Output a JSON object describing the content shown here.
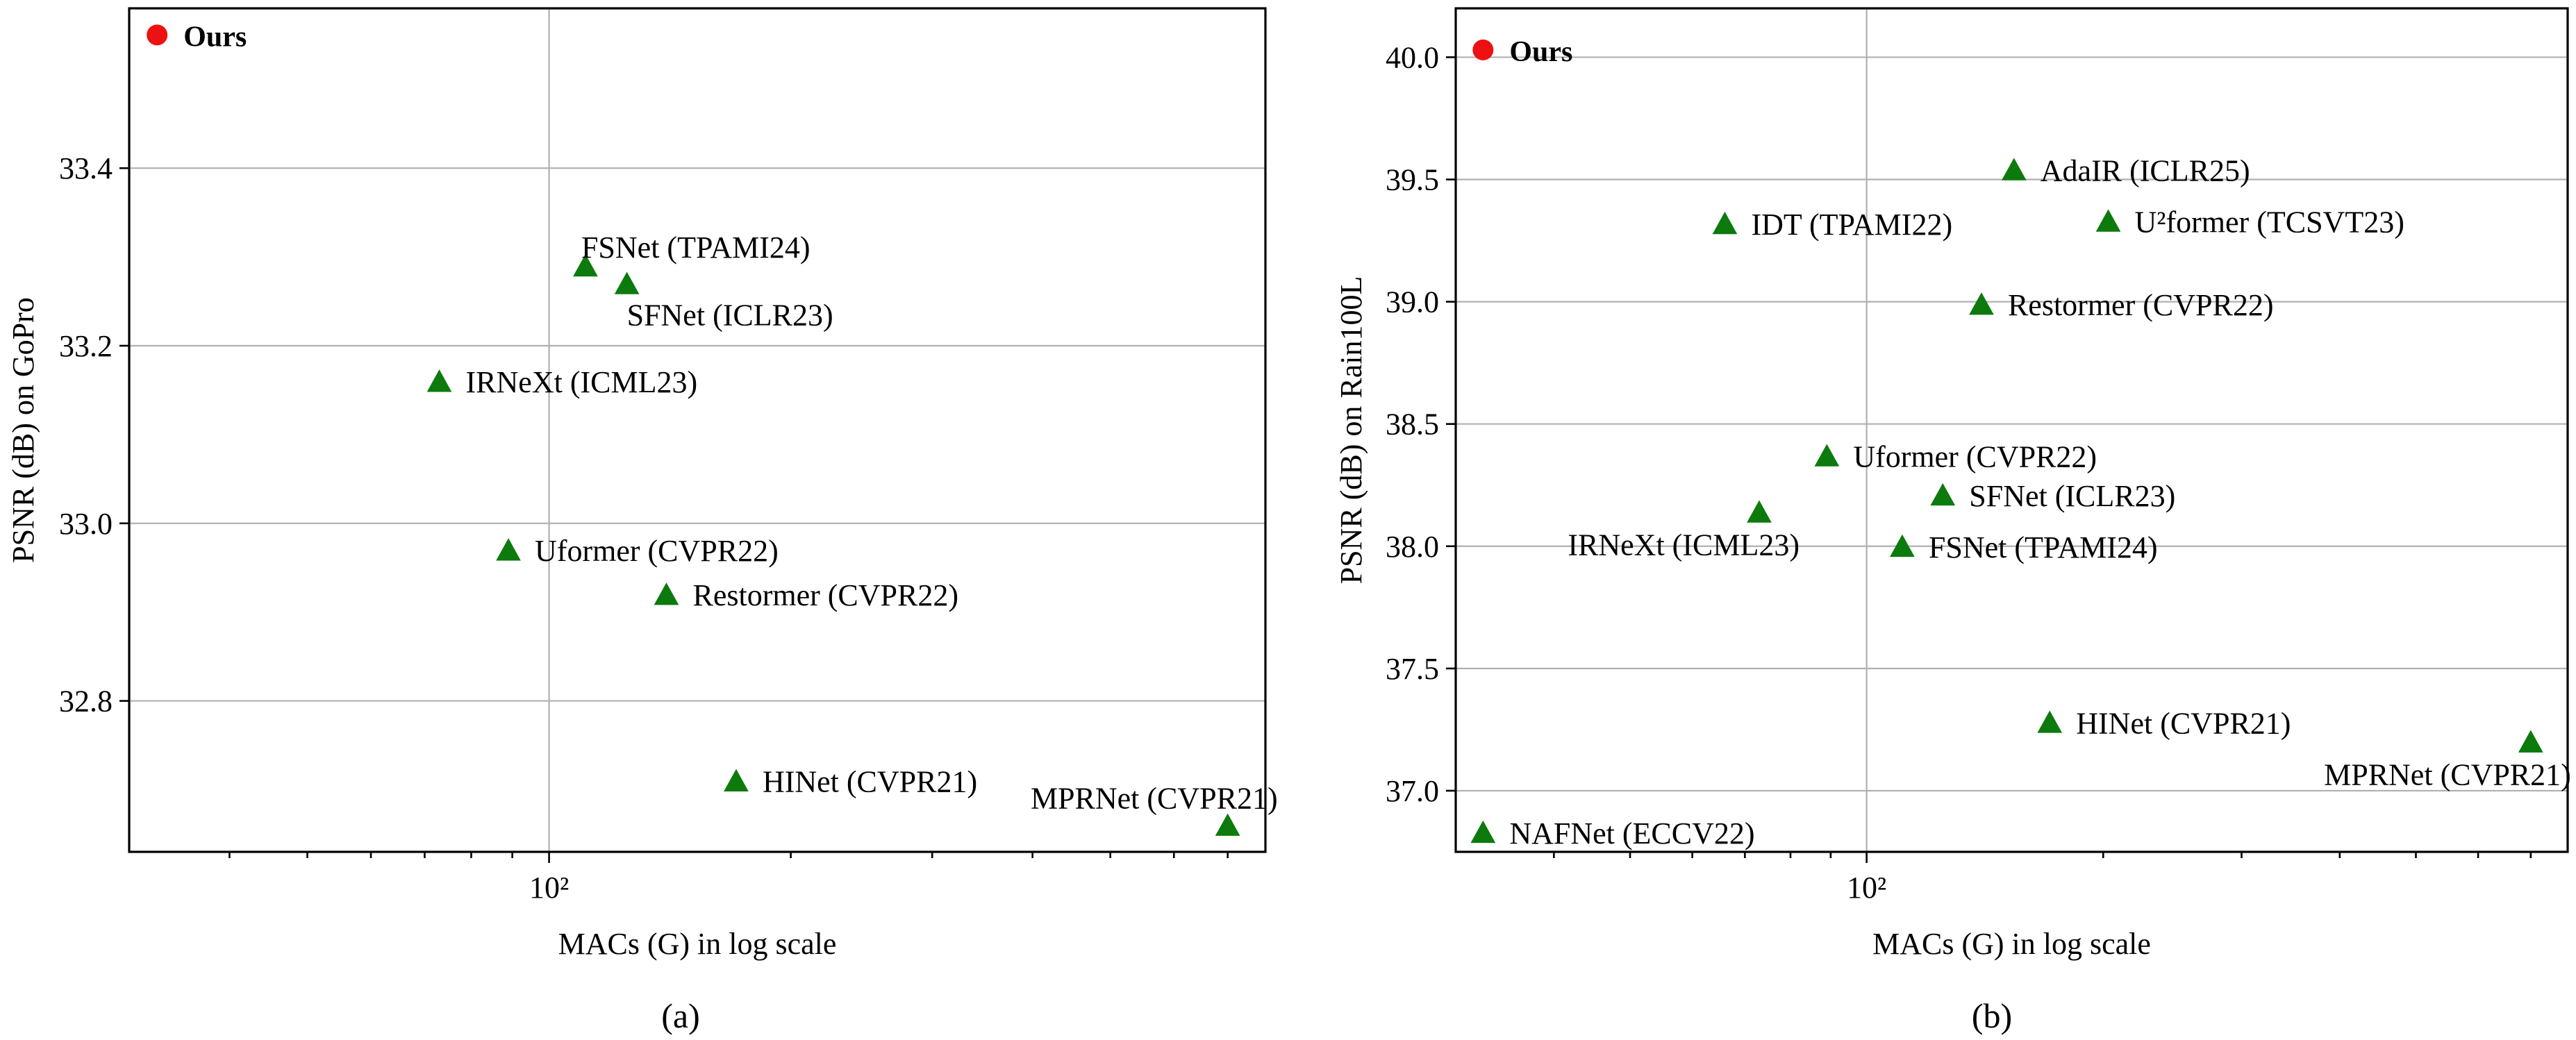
{
  "figure": {
    "colors": {
      "ours": "#ee1111",
      "others": "#0c7a0c",
      "grid": "#b0b0b0"
    }
  },
  "chart_data": [
    {
      "type": "scatter",
      "caption": "(a)",
      "xlabel": "MACs (G) in log scale",
      "ylabel": "PSNR (dB) on GoPro",
      "xscale": "log",
      "xlim": [
        30,
        780
      ],
      "ylim": [
        32.63,
        33.58
      ],
      "xticks": [
        100
      ],
      "xtick_labels": [
        "10²"
      ],
      "yticks": [
        32.8,
        33.0,
        33.2,
        33.4
      ],
      "ytick_labels": [
        "32.8",
        "33.0",
        "33.2",
        "33.4"
      ],
      "grid": true,
      "points": [
        {
          "name": "Ours",
          "x": 32.5,
          "y": 33.55,
          "marker": "circle",
          "label_pos": "right",
          "bold": true
        },
        {
          "name": "FSNet (TPAMI24)",
          "x": 111,
          "y": 33.29,
          "marker": "triangle",
          "label_pos": "top"
        },
        {
          "name": "SFNet (ICLR23)",
          "x": 125,
          "y": 33.27,
          "marker": "triangle",
          "label_pos": "below-right"
        },
        {
          "name": "IRNeXt (ICML23)",
          "x": 73,
          "y": 33.16,
          "marker": "triangle",
          "label_pos": "right"
        },
        {
          "name": "Uformer (CVPR22)",
          "x": 89,
          "y": 32.97,
          "marker": "triangle",
          "label_pos": "right"
        },
        {
          "name": "Restormer (CVPR22)",
          "x": 140,
          "y": 32.92,
          "marker": "triangle",
          "label_pos": "right"
        },
        {
          "name": "HINet (CVPR21)",
          "x": 171,
          "y": 32.71,
          "marker": "triangle",
          "label_pos": "right"
        },
        {
          "name": "MPRNet (CVPR21)",
          "x": 700,
          "y": 32.66,
          "marker": "triangle",
          "label_pos": "top-left"
        }
      ]
    },
    {
      "type": "scatter",
      "caption": "(b)",
      "xlabel": "MACs (G) in log scale",
      "ylabel": "PSNR (dB) on Rain100L",
      "xscale": "log",
      "xlim": [
        30,
        780
      ],
      "ylim": [
        36.75,
        40.2
      ],
      "xticks": [
        100
      ],
      "xtick_labels": [
        "10²"
      ],
      "yticks": [
        37.0,
        37.5,
        38.0,
        38.5,
        39.0,
        39.5,
        40.0
      ],
      "ytick_labels": [
        "37.0",
        "37.5",
        "38.0",
        "38.5",
        "39.0",
        "39.5",
        "40.0"
      ],
      "grid": true,
      "points": [
        {
          "name": "Ours",
          "x": 32.5,
          "y": 40.03,
          "marker": "circle",
          "label_pos": "right",
          "bold": true
        },
        {
          "name": "AdaIR (ICLR25)",
          "x": 154,
          "y": 39.54,
          "marker": "triangle",
          "label_pos": "right"
        },
        {
          "name": "IDT (TPAMI22)",
          "x": 66,
          "y": 39.32,
          "marker": "triangle",
          "label_pos": "right"
        },
        {
          "name": "U²former (TCSVT23)",
          "x": 203,
          "y": 39.33,
          "marker": "triangle",
          "label_pos": "right"
        },
        {
          "name": "Restormer (CVPR22)",
          "x": 140,
          "y": 38.99,
          "marker": "triangle",
          "label_pos": "right"
        },
        {
          "name": "Uformer (CVPR22)",
          "x": 89,
          "y": 38.37,
          "marker": "triangle",
          "label_pos": "right"
        },
        {
          "name": "SFNet (ICLR23)",
          "x": 125,
          "y": 38.21,
          "marker": "triangle",
          "label_pos": "right"
        },
        {
          "name": "IRNeXt (ICML23)",
          "x": 73,
          "y": 38.14,
          "marker": "triangle",
          "label_pos": "below-left"
        },
        {
          "name": "FSNet (TPAMI24)",
          "x": 111,
          "y": 38.0,
          "marker": "triangle",
          "label_pos": "right"
        },
        {
          "name": "HINet (CVPR21)",
          "x": 171,
          "y": 37.28,
          "marker": "triangle",
          "label_pos": "right"
        },
        {
          "name": "MPRNet (CVPR21)",
          "x": 700,
          "y": 37.2,
          "marker": "triangle",
          "label_pos": "below-left"
        },
        {
          "name": "NAFNet (ECCV22)",
          "x": 32.5,
          "y": 36.83,
          "marker": "triangle",
          "label_pos": "right"
        }
      ]
    }
  ]
}
